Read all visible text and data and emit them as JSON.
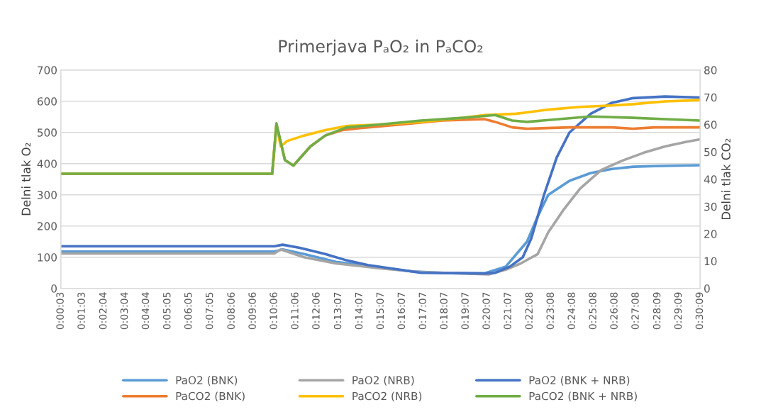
{
  "chart_data": {
    "type": "line",
    "title": "Primerjava PₐO₂ in PₐCO₂",
    "ylabel": "Delni tlak O₂",
    "y2label": "Delni tlak CO₂",
    "xlim": [
      0.05,
      30.15
    ],
    "xticks": [
      {
        "value": 0.05,
        "label": "0:00:03"
      },
      {
        "value": 1.05,
        "label": "0:01:03"
      },
      {
        "value": 2.07,
        "label": "0:02:04"
      },
      {
        "value": 3.07,
        "label": "0:03:04"
      },
      {
        "value": 4.07,
        "label": "0:04:04"
      },
      {
        "value": 5.08,
        "label": "0:05:05"
      },
      {
        "value": 6.08,
        "label": "0:06:05"
      },
      {
        "value": 7.08,
        "label": "0:07:05"
      },
      {
        "value": 8.1,
        "label": "0:08:06"
      },
      {
        "value": 9.1,
        "label": "0:09:06"
      },
      {
        "value": 10.1,
        "label": "0:10:06"
      },
      {
        "value": 11.1,
        "label": "0:11:06"
      },
      {
        "value": 12.1,
        "label": "0:12:06"
      },
      {
        "value": 13.12,
        "label": "0:13:07"
      },
      {
        "value": 14.12,
        "label": "0:14:07"
      },
      {
        "value": 15.12,
        "label": "0:15:07"
      },
      {
        "value": 16.12,
        "label": "0:16:07"
      },
      {
        "value": 17.12,
        "label": "0:17:07"
      },
      {
        "value": 18.12,
        "label": "0:18:07"
      },
      {
        "value": 19.12,
        "label": "0:19:07"
      },
      {
        "value": 20.12,
        "label": "0:20:07"
      },
      {
        "value": 21.12,
        "label": "0:21:07"
      },
      {
        "value": 22.13,
        "label": "0:22:08"
      },
      {
        "value": 23.13,
        "label": "0:23:08"
      },
      {
        "value": 24.13,
        "label": "0:24:08"
      },
      {
        "value": 25.13,
        "label": "0:25:08"
      },
      {
        "value": 26.13,
        "label": "0:26:08"
      },
      {
        "value": 27.13,
        "label": "0:27:08"
      },
      {
        "value": 28.15,
        "label": "0:28:09"
      },
      {
        "value": 29.15,
        "label": "0:29:09"
      },
      {
        "value": 30.15,
        "label": "0:30:09"
      }
    ],
    "ylim": [
      0,
      700
    ],
    "yticks": [
      0,
      100,
      200,
      300,
      400,
      500,
      600,
      700
    ],
    "y2lim": [
      0,
      80
    ],
    "y2ticks": [
      0,
      10,
      20,
      30,
      40,
      50,
      60,
      70,
      80
    ],
    "grid": "y",
    "legend": "bottom",
    "marker": "none",
    "line_style": "solid",
    "series": [
      {
        "name": "PaO2 (BNK)",
        "color": "#5b9bd5",
        "x": [
          0.05,
          10.1,
          10.5,
          11.5,
          13,
          14.5,
          16.5,
          18,
          20,
          21,
          22,
          22.5,
          23,
          24,
          25,
          26,
          27,
          28,
          30.15
        ],
        "values": [
          118,
          118,
          125,
          110,
          85,
          72,
          55,
          50,
          48,
          70,
          150,
          230,
          300,
          345,
          370,
          383,
          390,
          392,
          395
        ]
      },
      {
        "name": "PaO2 (NRB)",
        "color": "#a5a5a5",
        "x": [
          0.05,
          10.1,
          10.4,
          11.5,
          13,
          15,
          17,
          19,
          20.2,
          21,
          21.7,
          22.5,
          23,
          23.7,
          24.5,
          25.5,
          26.5,
          27.5,
          28.5,
          29.5,
          30.15
        ],
        "values": [
          112,
          112,
          125,
          100,
          80,
          65,
          52,
          48,
          45,
          60,
          80,
          110,
          180,
          250,
          320,
          380,
          410,
          435,
          455,
          470,
          478
        ]
      },
      {
        "name": "PaO2 (BNK + NRB)",
        "color": "#4472c4",
        "x": [
          0.05,
          10.1,
          10.5,
          11.3,
          12.5,
          13.5,
          14.5,
          16,
          17,
          20,
          20.5,
          21.2,
          21.8,
          22.2,
          22.8,
          23.4,
          24,
          25,
          26,
          27,
          28.5,
          30.15
        ],
        "values": [
          135,
          135,
          140,
          130,
          110,
          90,
          75,
          60,
          50,
          48,
          50,
          70,
          100,
          160,
          300,
          420,
          500,
          560,
          595,
          610,
          615,
          612
        ]
      },
      {
        "name": "PaCO2 (BNK)",
        "color": "#ed7d31",
        "axis": "y2",
        "x": [
          0.05,
          10.0,
          10.2,
          10.6,
          11.0,
          11.8,
          12.5,
          13.3,
          14.5,
          16,
          18,
          20,
          20.5,
          21.3,
          22,
          24,
          26,
          27,
          28,
          30.15
        ],
        "values": [
          42,
          42,
          60,
          47,
          45,
          52,
          56,
          58,
          59,
          60,
          61.5,
          62,
          61,
          59,
          58.5,
          59,
          59,
          58.5,
          59,
          59
        ]
      },
      {
        "name": "PaCO2 (NRB)",
        "color": "#ffc000",
        "axis": "y2",
        "x": [
          0.05,
          10.0,
          10.2,
          10.4,
          10.7,
          11.5,
          12.5,
          13.5,
          15,
          17,
          19,
          20,
          21.5,
          22,
          23,
          24.5,
          26,
          27,
          28.5,
          30.15
        ],
        "values": [
          42,
          42,
          60,
          52,
          54,
          56,
          58,
          59.5,
          60,
          61,
          62.5,
          63.5,
          64,
          64.5,
          65.5,
          66.5,
          67,
          67.5,
          68.5,
          69
        ]
      },
      {
        "name": "PaCO2 (BNK + NRB)",
        "color": "#70ad47",
        "axis": "y2",
        "x": [
          0.05,
          10.0,
          10.2,
          10.6,
          11.0,
          11.8,
          12.5,
          13.5,
          15,
          17,
          19,
          20.5,
          21.3,
          22,
          23.5,
          25,
          27,
          28.5,
          30.15
        ],
        "values": [
          42,
          42,
          60.5,
          47,
          45,
          52,
          56,
          59,
          60,
          61.5,
          62.5,
          63.5,
          61.5,
          61,
          62,
          63,
          62.5,
          62,
          61.5
        ]
      }
    ]
  }
}
